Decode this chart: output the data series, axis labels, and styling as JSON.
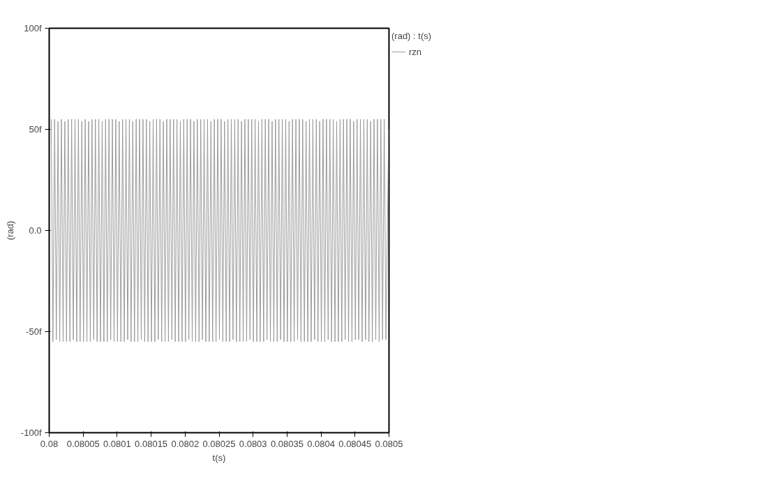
{
  "chart_data": {
    "type": "line",
    "xlabel": "t(s)",
    "ylabel": "(rad)",
    "legend_title": "(rad) : t(s)",
    "xlim": [
      0.08,
      0.0805
    ],
    "ylim": [
      -100,
      100
    ],
    "xticks": [
      0.08,
      0.08005,
      0.0801,
      0.08015,
      0.0802,
      0.08025,
      0.0803,
      0.08035,
      0.0804,
      0.08045,
      0.0805
    ],
    "yticks": [
      {
        "value": -100,
        "label": "-100f"
      },
      {
        "value": -50,
        "label": "-50f"
      },
      {
        "value": 0,
        "label": "0.0"
      },
      {
        "value": 50,
        "label": "50f"
      },
      {
        "value": 100,
        "label": "100f"
      }
    ],
    "grid": false,
    "legend": "top right",
    "marker": "none",
    "line_style": "solid",
    "series": [
      {
        "name": "rzn",
        "color": "#9a9a9a",
        "x": [
          0.080003,
          0.0800055,
          0.080008,
          0.0800105,
          0.080013,
          0.0800155,
          0.080018,
          0.0800205,
          0.080023,
          0.0800255,
          0.080028,
          0.0800305,
          0.080033,
          0.0800355,
          0.080038,
          0.0800405,
          0.080043,
          0.0800455,
          0.080048,
          0.0800505,
          0.080053,
          0.0800555,
          0.080058,
          0.0800605,
          0.080063,
          0.0800655,
          0.080068,
          0.0800705,
          0.080073,
          0.0800755,
          0.080078,
          0.0800805,
          0.080083,
          0.0800855,
          0.080088,
          0.0800905,
          0.080093,
          0.0800955,
          0.080098,
          0.0801005,
          0.080103,
          0.0801055,
          0.080108,
          0.0801105,
          0.080113,
          0.0801155,
          0.080118,
          0.0801205,
          0.080123,
          0.0801255,
          0.080128,
          0.0801305,
          0.080133,
          0.0801355,
          0.080138,
          0.0801405,
          0.080143,
          0.0801455,
          0.080148,
          0.0801505,
          0.080153,
          0.0801555,
          0.080158,
          0.0801605,
          0.080163,
          0.0801655,
          0.080168,
          0.0801705,
          0.080173,
          0.0801755,
          0.080178,
          0.0801805,
          0.080183,
          0.0801855,
          0.080188,
          0.0801905,
          0.080193,
          0.0801955,
          0.080198,
          0.0802005,
          0.080203,
          0.0802055,
          0.080208,
          0.0802105,
          0.080213,
          0.0802155,
          0.080218,
          0.0802205,
          0.080223,
          0.0802255,
          0.080228,
          0.0802305,
          0.080233,
          0.0802355,
          0.080238,
          0.0802405,
          0.080243,
          0.0802455,
          0.080248,
          0.0802505,
          0.080253,
          0.0802555,
          0.080258,
          0.0802605,
          0.080263,
          0.0802655,
          0.080268,
          0.0802705,
          0.080273,
          0.0802755,
          0.080278,
          0.0802805,
          0.080283,
          0.0802855,
          0.080288,
          0.0802905,
          0.080293,
          0.0802955,
          0.080298,
          0.0803005,
          0.080303,
          0.0803055,
          0.080308,
          0.0803105,
          0.080313,
          0.0803155,
          0.080318,
          0.0803205,
          0.080323,
          0.0803255,
          0.080328,
          0.0803305,
          0.080333,
          0.0803355,
          0.080338,
          0.0803405,
          0.080343,
          0.0803455,
          0.080348,
          0.0803505,
          0.080353,
          0.0803555,
          0.080358,
          0.0803605,
          0.080363,
          0.0803655,
          0.080368,
          0.0803705,
          0.080373,
          0.0803755,
          0.080378,
          0.0803805,
          0.080383,
          0.0803855,
          0.080388,
          0.0803905,
          0.080393,
          0.0803955,
          0.080398,
          0.0804005,
          0.080403,
          0.0804055,
          0.080408,
          0.0804105,
          0.080413,
          0.0804155,
          0.080418,
          0.0804205,
          0.080423,
          0.0804255,
          0.080428,
          0.0804305,
          0.080433,
          0.0804355,
          0.080438,
          0.0804405,
          0.080443,
          0.0804455,
          0.080448,
          0.0804505,
          0.080453,
          0.0804555,
          0.080458,
          0.0804605,
          0.080463,
          0.0804655,
          0.080468,
          0.0804705,
          0.080473,
          0.0804755,
          0.080478,
          0.0804805,
          0.080483,
          0.0804855,
          0.080488,
          0.0804905,
          0.080493,
          0.0804955,
          0.0804995
        ],
        "values": [
          55,
          -55,
          55,
          -54,
          54,
          -55,
          55,
          -55,
          54,
          -55,
          55,
          -55,
          55,
          -54,
          55,
          -55,
          55,
          -55,
          54,
          -55,
          55,
          -55,
          54,
          -55,
          55,
          -54,
          55,
          -55,
          55,
          -55,
          54,
          -55,
          55,
          -55,
          55,
          -54,
          55,
          -55,
          55,
          -55,
          54,
          -55,
          55,
          -55,
          55,
          -54,
          55,
          -55,
          54,
          -55,
          55,
          -55,
          55,
          -54,
          55,
          -55,
          55,
          -55,
          54,
          -55,
          55,
          -55,
          55,
          -54,
          55,
          -55,
          54,
          -55,
          55,
          -55,
          55,
          -54,
          55,
          -55,
          55,
          -55,
          54,
          -55,
          55,
          -55,
          55,
          -54,
          55,
          -55,
          54,
          -55,
          55,
          -55,
          55,
          -54,
          55,
          -55,
          55,
          -55,
          54,
          -55,
          55,
          -55,
          55,
          -54,
          55,
          -55,
          54,
          -55,
          55,
          -55,
          55,
          -54,
          55,
          -55,
          55,
          -55,
          54,
          -55,
          55,
          -55,
          55,
          -54,
          55,
          -55,
          55,
          -55,
          54,
          -55,
          55,
          -55,
          55,
          -54,
          55,
          -55,
          54,
          -55,
          55,
          -55,
          55,
          -54,
          55,
          -55,
          55,
          -55,
          54,
          -55,
          55,
          -55,
          55,
          -54,
          55,
          -55,
          55,
          -55,
          54,
          -55,
          55,
          -55,
          55,
          -54,
          55,
          -55,
          54,
          -55,
          55,
          -55,
          55,
          -54,
          55,
          -55,
          55,
          -55,
          54,
          -55,
          55,
          -55,
          55,
          -54,
          55,
          -55,
          55,
          -55,
          54,
          -54,
          55,
          -54,
          55,
          -55,
          55,
          -54,
          55,
          -55,
          54,
          -55,
          55,
          -54,
          55,
          -55,
          55,
          -54,
          55,
          -54,
          50
        ]
      }
    ]
  }
}
